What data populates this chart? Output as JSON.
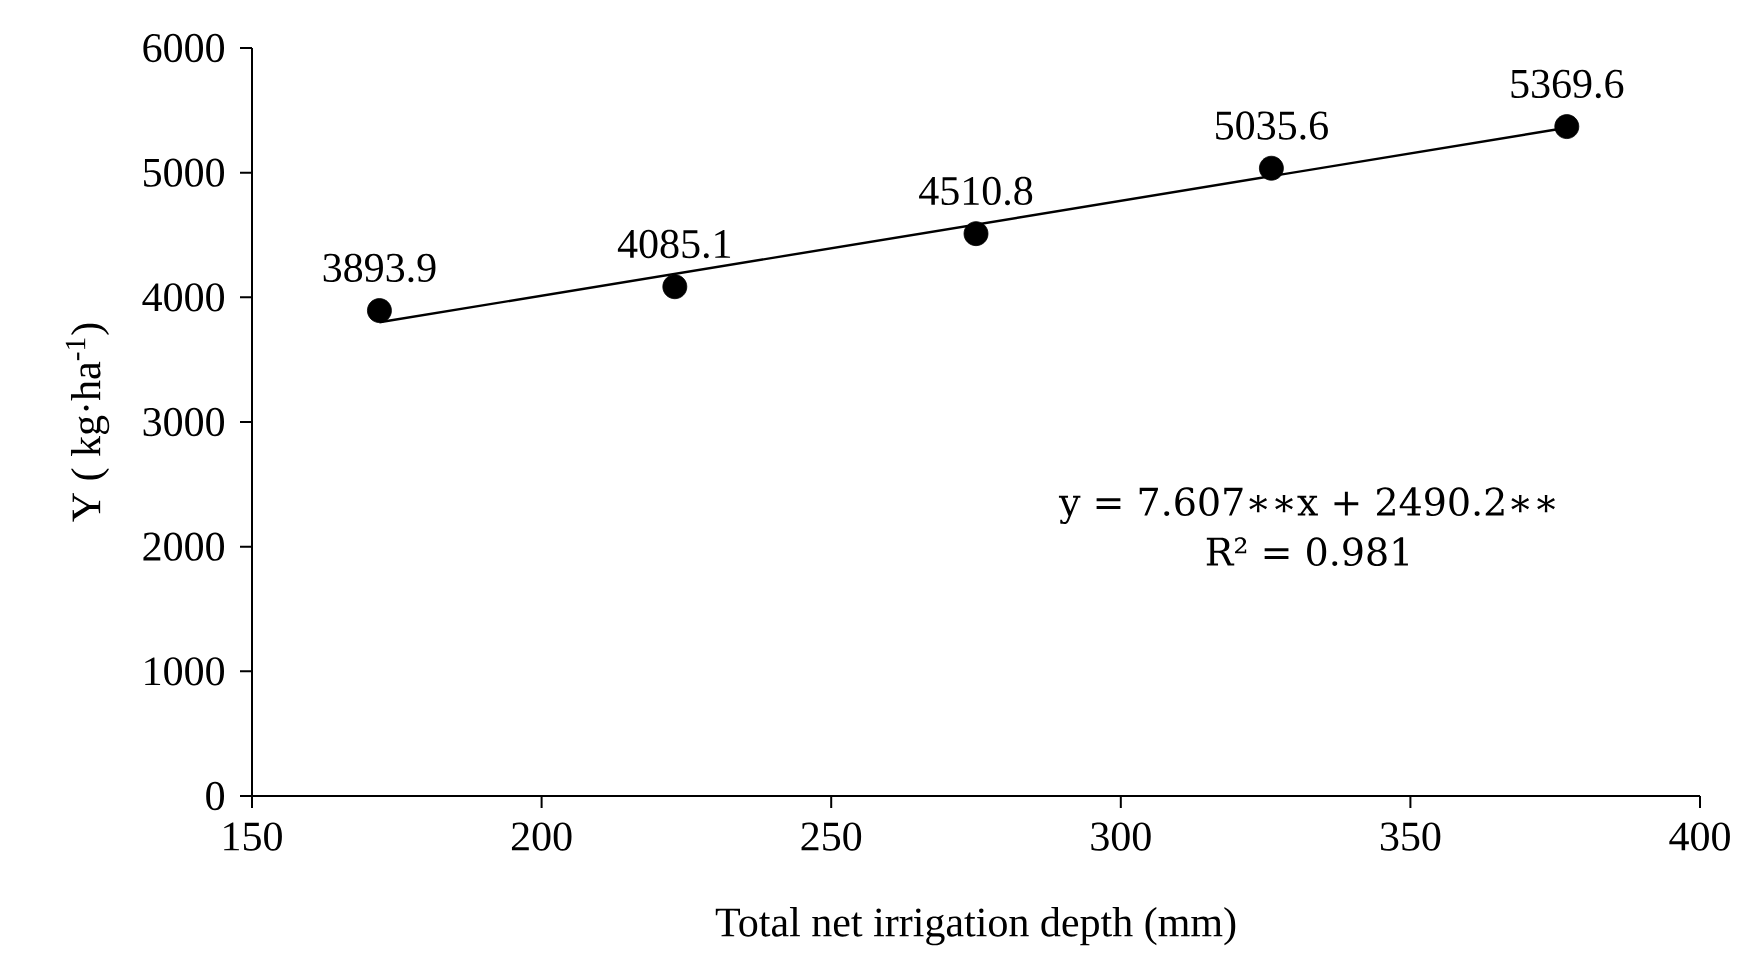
{
  "chart_data": {
    "type": "scatter",
    "xlabel": "Total net irrigation depth (mm)",
    "ylabel": "Y ( kg·ha$^{-1}$)",
    "xlim": [
      150,
      400
    ],
    "xticks": [
      150,
      200,
      250,
      300,
      350,
      400
    ],
    "ylim": [
      0,
      6000
    ],
    "yticks": [
      0,
      1000,
      2000,
      3000,
      4000,
      5000,
      6000
    ],
    "annotations": [
      "y = 7.607∗∗x + 2490.2∗∗",
      "R² = 0.981"
    ],
    "series": [
      {
        "color": "#000000",
        "marker": "circle",
        "x": [
          172,
          223,
          275,
          326,
          377
        ],
        "values": [
          3893.9,
          4085.1,
          4510.8,
          5035.6,
          5369.6
        ],
        "value_labels": [
          "3893.9",
          "4085.1",
          "4510.8",
          "5035.6",
          "5369.6"
        ]
      },
      {
        "type": "line",
        "color": "#000000",
        "x": [
          172,
          377
        ],
        "values": [
          3800,
          5360
        ]
      }
    ]
  }
}
